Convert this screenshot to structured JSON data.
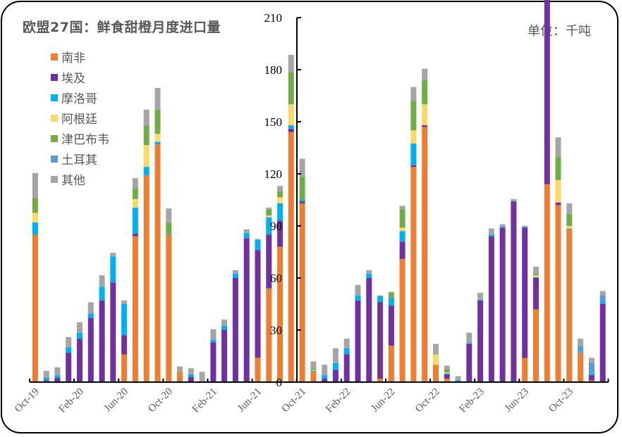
{
  "title": "欧盟27国：鲜食甜橙月度进口量",
  "unit_label": "单位：千吨",
  "legend": [
    {
      "name": "南非",
      "color": "#ED7D31"
    },
    {
      "name": "埃及",
      "color": "#7030A0"
    },
    {
      "name": "摩洛哥",
      "color": "#00B0F0"
    },
    {
      "name": "阿根廷",
      "color": "#FFD966"
    },
    {
      "name": "津巴布韦",
      "color": "#70AD47"
    },
    {
      "name": "土耳其",
      "color": "#5B9BD5"
    },
    {
      "name": "其他",
      "color": "#A5A5A5"
    }
  ],
  "chart_data": {
    "type": "bar",
    "stacked": true,
    "title": "欧盟27国：鲜食甜橙月度进口量",
    "ylabel": "千吨",
    "ylim": [
      0,
      210
    ],
    "yticks": [
      0,
      30,
      60,
      90,
      120,
      150,
      180,
      210
    ],
    "xtick_labels": [
      "Oct-19",
      "Feb-20",
      "Jun-20",
      "Oct-20",
      "Feb-21",
      "Jun-21",
      "Oct-21",
      "Feb-22",
      "Jun-22",
      "Oct-22",
      "Feb-23",
      "Jun-23",
      "Oct-23"
    ],
    "categories": [
      "Oct-19",
      "Nov-19",
      "Dec-19",
      "Jan-20",
      "Feb-20",
      "Mar-20",
      "Apr-20",
      "May-20",
      "Jun-20",
      "Jul-20",
      "Aug-20",
      "Sep-20",
      "Oct-20",
      "Nov-20",
      "Dec-20",
      "Jan-21",
      "Feb-21",
      "Mar-21",
      "Apr-21",
      "May-21",
      "Jun-21",
      "Jul-21",
      "Aug-21",
      "Sep-21",
      "Oct-21",
      "Nov-21",
      "Dec-21",
      "Jan-22",
      "Feb-22",
      "Mar-22",
      "Apr-22",
      "May-22",
      "Jun-22",
      "Jul-22",
      "Aug-22",
      "Sep-22",
      "Oct-22",
      "Nov-22",
      "Dec-22",
      "Jan-23",
      "Feb-23",
      "Mar-23",
      "Apr-23",
      "May-23",
      "Jun-23",
      "Jul-23",
      "Aug-23",
      "Sep-23",
      "Oct-23",
      "Nov-23",
      "Dec-23",
      "Jan-24"
    ],
    "series": [
      {
        "name": "南非",
        "color": "#ED7D31",
        "values": [
          85,
          0.5,
          0,
          0,
          0,
          0,
          0,
          0.5,
          16,
          84,
          119,
          137,
          85,
          6,
          0,
          0,
          0,
          0,
          0,
          0,
          14,
          54,
          78,
          144,
          103,
          6,
          0,
          0,
          0,
          0,
          0,
          2,
          21,
          71,
          124,
          147,
          10,
          2,
          0,
          0,
          0,
          0,
          0,
          0,
          14,
          42,
          114,
          102,
          88,
          17,
          1,
          0
        ]
      },
      {
        "name": "埃及",
        "color": "#7030A0",
        "values": [
          0,
          0.5,
          2.5,
          17,
          25,
          37,
          47,
          57,
          11,
          1.5,
          0,
          0,
          0,
          0,
          3,
          0,
          23,
          30,
          60,
          83,
          62,
          31,
          15,
          2,
          1,
          0,
          2,
          7,
          16,
          47,
          60,
          44,
          23,
          10,
          1,
          1,
          0,
          2.5,
          0,
          22,
          47,
          84,
          89,
          104,
          75,
          18,
          115,
          1.5,
          0,
          0,
          3,
          45
        ]
      },
      {
        "name": "摩洛哥",
        "color": "#00B0F0",
        "values": [
          7,
          1.5,
          1.5,
          3,
          3.5,
          2.5,
          8,
          15,
          18,
          15,
          5,
          1.5,
          0.5,
          0,
          1.5,
          0,
          1.5,
          2.5,
          2.5,
          3,
          6,
          10,
          10,
          2,
          1.2,
          0.5,
          2,
          4,
          3.5,
          3,
          2.5,
          3.5,
          4.5,
          6,
          12.5,
          0,
          0,
          0.5,
          1,
          0.5,
          0.5,
          1,
          0.5,
          0.5,
          0.5,
          0.5,
          1,
          0,
          0.5,
          0.5,
          1,
          1
        ]
      },
      {
        "name": "阿根廷",
        "color": "#FFD966",
        "values": [
          5.5,
          0,
          0,
          0,
          0,
          0,
          0,
          0,
          0,
          5,
          12.5,
          4.5,
          0,
          0,
          0,
          0,
          0,
          0,
          0,
          0,
          0,
          1,
          3.5,
          12,
          0,
          0.5,
          0,
          0,
          0,
          0,
          0,
          0,
          0,
          2,
          7.5,
          12,
          6,
          0.5,
          0,
          0,
          0,
          0,
          0,
          0,
          0,
          1,
          7,
          13,
          1.5,
          0,
          0,
          0
        ]
      },
      {
        "name": "津巴布韦",
        "color": "#70AD47",
        "values": [
          8.5,
          0.5,
          0,
          0,
          0,
          0,
          0,
          0,
          0,
          6,
          11.5,
          14,
          6.5,
          0,
          0,
          0,
          0,
          0,
          0,
          0,
          0,
          3.5,
          3.5,
          18.5,
          13,
          1,
          0,
          0,
          0,
          0,
          0,
          0,
          3,
          10.5,
          17,
          14,
          0,
          2,
          0,
          0,
          0,
          0,
          0,
          0,
          0,
          1,
          16,
          13,
          7,
          0,
          0,
          0
        ]
      },
      {
        "name": "土耳其",
        "color": "#5B9BD5",
        "values": [
          0,
          0,
          0,
          0,
          0,
          0,
          0,
          0,
          0,
          0,
          0,
          0,
          0,
          0,
          0,
          0,
          0,
          0,
          0,
          0,
          0,
          0,
          0,
          0,
          0,
          0,
          0,
          0,
          0,
          0,
          0,
          0,
          0,
          0,
          0,
          0,
          0,
          0,
          0,
          0,
          0,
          0,
          0,
          0,
          0,
          0,
          0,
          0,
          0,
          3.5,
          6,
          4
        ]
      },
      {
        "name": "其他",
        "color": "#A5A5A5",
        "values": [
          14.5,
          3.5,
          4.5,
          6,
          6,
          6.5,
          6.5,
          2,
          2,
          6,
          9,
          12.5,
          8,
          3,
          3.5,
          6,
          6,
          3.5,
          2,
          2,
          0.5,
          1,
          3,
          10,
          10.5,
          4,
          6,
          8.5,
          5.5,
          6,
          2,
          0.5,
          0.5,
          2,
          8,
          6.5,
          6,
          2,
          2.5,
          6,
          4,
          3.5,
          1.5,
          1,
          0.5,
          4,
          10,
          11.5,
          6,
          4,
          3,
          2.5
        ]
      }
    ]
  }
}
